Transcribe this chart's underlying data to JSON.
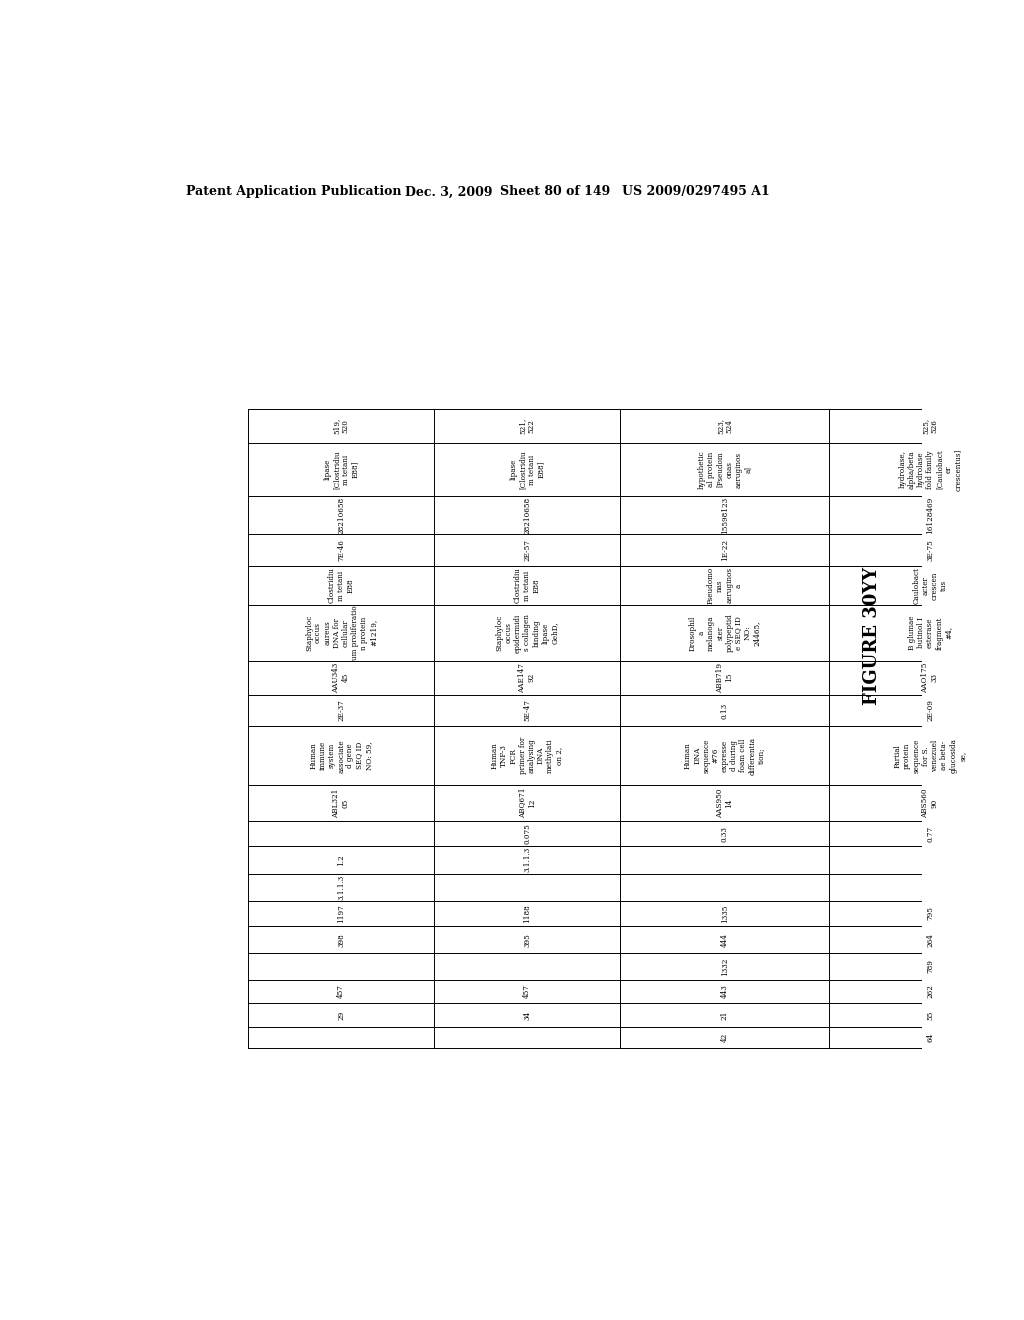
{
  "header_line1": "Patent Application Publication",
  "header_line2": "Dec. 3, 2009",
  "header_line3": "Sheet 80 of 149",
  "header_line4": "US 2009/0297495 A1",
  "figure_label": "FIGURE 30YY",
  "rows_data": [
    {
      "row_nums": "519,\n520",
      "c0": "lipase\n[Clostridiu\nm tetani\nE88]",
      "c1": "28210658",
      "c2": "7E-46",
      "c3": "Clostridiu\nm tetani\nE88",
      "c4": "Staphyloc\noccus\naureus\nDNA for\ncellular\num proliferatio\nn protein\n#1219,",
      "c5": "AAU343\n45",
      "c6": "2E-37",
      "c7": "Human\nimmune\nsystem\nassociate\nd gene\nSEQ ID\nNO: 59,",
      "c8": "ABL321\n05",
      "c9": "",
      "c10": "1.2",
      "c11": "3.1.1.3",
      "c12": "1197",
      "c13": "398",
      "c14": "",
      "c15": "457",
      "c16": "29",
      "c17": ""
    },
    {
      "row_nums": "521,\n522",
      "c0": "lipase\n[Clostridiu\nm tetani\nE88]",
      "c1": "28210658",
      "c2": "2E-57",
      "c3": "Clostridiu\nm tetani\nE88",
      "c4": "Staphyloc\noccus\nepidermidi\ns collagen\nbinding\nlipase\nGehD,",
      "c5": "AAE147\n92",
      "c6": "5E-47",
      "c7": "Human\nTNF-3\nPCR\nprimer for\nanalysing\nDNA\nmethylati\non 2,",
      "c8": "ABQ671\n12",
      "c9": "0.075",
      "c10": "3.1.1.3",
      "c11": "",
      "c12": "1188",
      "c13": "395",
      "c14": "",
      "c15": "457",
      "c16": "34",
      "c17": ""
    },
    {
      "row_nums": "523,\n524",
      "c0": "hypothetic\nal protein\n[Pseudom\nonas\naeruginos\na]",
      "c1": "15598123",
      "c2": "1E-22",
      "c3": "Pseudomo\nnas\naeruginos\na",
      "c4": "Drosophil\na\nmelanoga\nster\npolypeptid\ne SEQ ID\nNO:\n24465,",
      "c5": "ABB719\n15",
      "c6": "0.13",
      "c7": "Human\nDNA\nsequence\n#76\nexpresse\nd during\nfoam cell\ndifferentia\ntion;",
      "c8": "AAS950\n14",
      "c9": "0.33",
      "c10": "",
      "c11": "",
      "c12": "1335",
      "c13": "444",
      "c14": "1332",
      "c15": "443",
      "c16": "21",
      "c17": "42"
    },
    {
      "row_nums": "525,\n526",
      "c0": "hydrolase,\nalpha/beta\nhydrolase\nfold family\n[Caulobact\ner\ncrescentus]",
      "c1": "16128469",
      "c2": "3E-75",
      "c3": "Caulobact\nacter\ncrescen\ntus",
      "c4": "B glumae\nbutinol I\nesterase\nfragment\n#4,",
      "c5": "AAO175\n33",
      "c6": "2E-09",
      "c7": "Partial\nprotein\nsequence\nfor S.\nvenezuel\nae beta-\nglucosida\nse,",
      "c8": "ABS560\n90",
      "c9": "0.77",
      "c10": "",
      "c11": "",
      "c12": "795",
      "c13": "264",
      "c14": "789",
      "c15": "262",
      "c16": "55",
      "c17": "64"
    }
  ]
}
